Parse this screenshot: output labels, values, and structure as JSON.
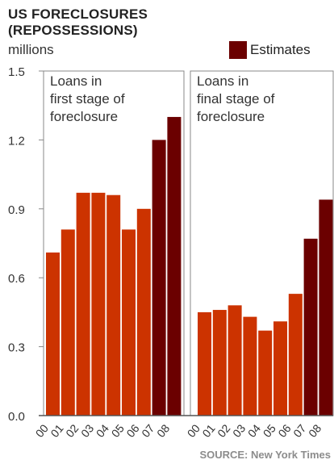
{
  "header": {
    "title_line1": "US FORECLOSURES",
    "title_line2": "(REPOSSESSIONS)",
    "unit": "millions"
  },
  "legend": {
    "label": "Estimates",
    "color": "#6b0000"
  },
  "source": "SOURCE: New York Times",
  "colors": {
    "actual": "#cc3300",
    "estimate": "#6b0000",
    "border": "#888888"
  },
  "chart_data": [
    {
      "type": "bar",
      "panel_label": [
        "Loans in",
        "first stage of",
        "foreclosure"
      ],
      "categories": [
        "00",
        "01",
        "02",
        "03",
        "04",
        "05",
        "06",
        "07",
        "08"
      ],
      "values": [
        0.71,
        0.81,
        0.97,
        0.97,
        0.96,
        0.81,
        0.9,
        1.2,
        1.3
      ],
      "estimate_flags": [
        false,
        false,
        false,
        false,
        false,
        false,
        false,
        true,
        true
      ],
      "yticks": [
        "0.0",
        "0.3",
        "0.6",
        "0.9",
        "1.2",
        "1.5"
      ],
      "ylim": [
        0,
        1.5
      ]
    },
    {
      "type": "bar",
      "panel_label": [
        "Loans in",
        "final stage of",
        "foreclosure"
      ],
      "categories": [
        "00",
        "01",
        "02",
        "03",
        "04",
        "05",
        "06",
        "07",
        "08"
      ],
      "values": [
        0.45,
        0.46,
        0.48,
        0.43,
        0.37,
        0.41,
        0.53,
        0.77,
        0.94
      ],
      "estimate_flags": [
        false,
        false,
        false,
        false,
        false,
        false,
        false,
        true,
        true
      ],
      "ylim": [
        0,
        1.5
      ]
    }
  ]
}
